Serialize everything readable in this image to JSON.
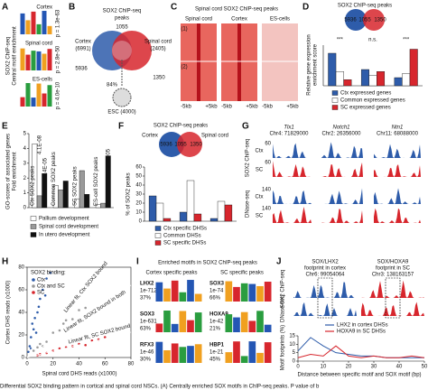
{
  "caption": "Differential SOX2 binding pattern in cortical and spinal cord NSCs. (A) Centrally enriched SOX motifs in ChIP-seq peaks. P value of b",
  "A": {
    "label": "A",
    "ylabel": "SOX2 ChIP-seq",
    "ylabel2": "Central motif enrichment",
    "motifs": [
      {
        "name": "Cortex",
        "p": "p = 1.3e-63"
      },
      {
        "name": "Spinal cord",
        "p": "p = 2.8e-50"
      },
      {
        "name": "ES-cells",
        "p": "p = 4.0e-10"
      }
    ]
  },
  "B": {
    "label": "B",
    "title": "SOX2 ChIP-seq",
    "title2": "peaks",
    "left": "Cortex",
    "left_n": "(6991)",
    "right": "Spinal cord",
    "right_n": "(2405)",
    "top": "1055",
    "left_only": "5936",
    "right_only": "1350",
    "pct": "84%",
    "bottom": "ESC (4000)"
  },
  "C": {
    "label": "C",
    "title": "Spinal cord SOX2 ChIP-seq peaks",
    "columns": [
      "Spinal cord",
      "Cortex",
      "ES-cells"
    ],
    "groups": [
      "(1)",
      "(2)"
    ],
    "xleft": "-5kb",
    "xright": "+5kb"
  },
  "D": {
    "label": "D",
    "title": "SOX2 ChIP-seq peaks",
    "venn": [
      "5936",
      "1055",
      "1350"
    ],
    "ylabel": "Relative gene expression",
    "ylabel2": "enrichment score",
    "sig": [
      "***",
      "n.s.",
      "***"
    ],
    "ylim": [
      0,
      1
    ],
    "series": [
      {
        "name": "Ctx expressed genes",
        "color": "#2e5caa",
        "values": [
          0.8,
          0.4,
          0.2
        ]
      },
      {
        "name": "Common expressed genes",
        "color": "#ffffff",
        "values": [
          0.35,
          0.25,
          0.3
        ]
      },
      {
        "name": "SC expressed genes",
        "color": "#d7262d",
        "values": [
          0.15,
          0.35,
          0.9
        ]
      }
    ]
  },
  "E": {
    "label": "E",
    "ylabel": "GO-scores of associated genes",
    "ylabel2": "Fold enrichment",
    "ylim": [
      0,
      5
    ],
    "yticks": [
      0,
      1,
      2,
      3,
      4,
      5
    ],
    "categories": [
      "Ctx SOX2 peaks",
      "Common SOX2 peaks",
      "SC SOX2 peaks",
      "ES-cell SOX2 peaks"
    ],
    "series": [
      {
        "name": "Pallium development",
        "color": "#ffffff",
        "values": [
          4.3,
          1.5,
          0.6,
          0.2
        ]
      },
      {
        "name": "Spinal cord development",
        "color": "#9a9a9a",
        "values": [
          0.8,
          1.2,
          2.5,
          0.3
        ]
      },
      {
        "name": "In utero development",
        "color": "#111111",
        "values": [
          2.3,
          1.8,
          0.9,
          3.5
        ]
      }
    ],
    "annotations": [
      "4.1E-08",
      "1.4E-05",
      "2.9E-05"
    ]
  },
  "F": {
    "label": "F",
    "title": "SOX2 ChIP-seq peaks",
    "left": "Cortex",
    "right": "Spinal cord",
    "venn": [
      "5936",
      "1055",
      "1350"
    ],
    "ylabel": "% of SOX2 peaks",
    "ylim": [
      0,
      60
    ],
    "yticks": [
      0,
      10,
      20,
      30,
      40,
      50,
      60
    ],
    "series": [
      {
        "name": "Ctx specific DHSs",
        "color": "#2e5caa",
        "values": [
          28,
          10,
          3
        ]
      },
      {
        "name": "Common DHSs",
        "color": "#ffffff",
        "values": [
          20,
          45,
          22
        ]
      },
      {
        "name": "SC specific DHSs",
        "color": "#d7262d",
        "values": [
          3,
          8,
          18
        ]
      }
    ]
  },
  "G": {
    "label": "G",
    "genes": [
      "Tlx1",
      "Notch1",
      "Ntn1"
    ],
    "coords": [
      "Chr4: 71829000",
      "Chr2: 26356000",
      "Chr11: 68088000"
    ],
    "rows": [
      "Ctx",
      "SC",
      "Ctx",
      "SC"
    ],
    "scales": [
      "60",
      "60",
      "140",
      "140"
    ],
    "assays": [
      "SOX2 ChIP-seq",
      "DNase-seq"
    ]
  },
  "H": {
    "label": "H",
    "type": "scatter",
    "ylabel": "Cortex DHS reads (x1000)",
    "xlabel": "Spinal cord DHS reads (x1000)",
    "legend_title": "SOX2 binding:",
    "xlim": [
      0,
      80
    ],
    "ylim": [
      0,
      80
    ],
    "xticks": [
      0,
      20,
      40,
      60,
      80
    ],
    "yticks": [
      0,
      20,
      40,
      60,
      80
    ],
    "fits": [
      "Linear fit, Ctx SOX2 bound",
      "Linear fit, SOX2 bound in both",
      "Linear fit, SC SOX2 bound"
    ],
    "series": [
      {
        "name": "Ctx",
        "color": "#2e5caa",
        "x": [
          2,
          3,
          5,
          4,
          8,
          10,
          6,
          12,
          15,
          3,
          7,
          9,
          1,
          14,
          18
        ],
        "y": [
          10,
          18,
          25,
          30,
          40,
          52,
          35,
          60,
          70,
          8,
          22,
          45,
          5,
          55,
          75
        ]
      },
      {
        "name": "Ctx and SC",
        "color": "#9a9a9a",
        "x": [
          5,
          10,
          15,
          20,
          25,
          30,
          35,
          40,
          12,
          8,
          28,
          45
        ],
        "y": [
          6,
          12,
          14,
          22,
          24,
          33,
          34,
          42,
          10,
          9,
          30,
          44
        ]
      },
      {
        "name": "SC",
        "color": "#d7262d",
        "x": [
          10,
          20,
          30,
          40,
          50,
          15,
          25,
          35,
          60,
          8,
          45,
          55
        ],
        "y": [
          3,
          6,
          9,
          12,
          15,
          4,
          8,
          10,
          18,
          2,
          11,
          16
        ]
      }
    ]
  },
  "I": {
    "label": "I",
    "title": "Enriched motifs in SOX2 ChIP-seq peaks",
    "left": "Cortex specific peaks",
    "right": "SC specific peaks",
    "left_motifs": [
      {
        "name": "LHX2",
        "p": "1e-712",
        "pct": "37%"
      },
      {
        "name": "SOX3",
        "p": "1e-631",
        "pct": "63%"
      },
      {
        "name": "RFX3",
        "p": "1e-46",
        "pct": "30%"
      }
    ],
    "right_motifs": [
      {
        "name": "SOX3",
        "p": "1e-74",
        "pct": "66%"
      },
      {
        "name": "HOXA9",
        "p": "1e-42",
        "pct": "21%"
      },
      {
        "name": "HBP1",
        "p": "1e-21",
        "pct": "45%"
      }
    ]
  },
  "J": {
    "label": "J",
    "footprints": [
      {
        "name": "SOX/LHX2",
        "sub": "footprint in cortex",
        "coord": "Chr6: 99054064"
      },
      {
        "name": "SOX/HOXA9",
        "sub": "footprint in SC",
        "coord": "Chr3: 138163157"
      }
    ],
    "track_labels": [
      "SOX2 ChIP-seq",
      "DNase-seq"
    ],
    "type": "line",
    "ylabel": "Motif footprints (%)",
    "xlabel": "Distance between specific motif and SOX motif (bp)",
    "xlim": [
      0,
      50
    ],
    "xticks": [
      0,
      10,
      20,
      30,
      40,
      50
    ],
    "ylim": [
      0,
      15
    ],
    "yticks": [
      0,
      5,
      10,
      15
    ],
    "x": [
      0,
      5,
      10,
      15,
      20,
      25,
      30,
      35,
      40,
      45,
      50
    ],
    "series": [
      {
        "name": "LHX2 in cortex DHSs",
        "color": "#2e5caa",
        "values": [
          6,
          14,
          9,
          5,
          4,
          3,
          3,
          2,
          2,
          2,
          2
        ]
      },
      {
        "name": "HOXA9 in SC DHSs",
        "color": "#d7262d",
        "values": [
          2,
          4,
          3,
          9,
          3,
          2,
          3,
          2,
          2,
          3,
          2
        ]
      }
    ]
  }
}
